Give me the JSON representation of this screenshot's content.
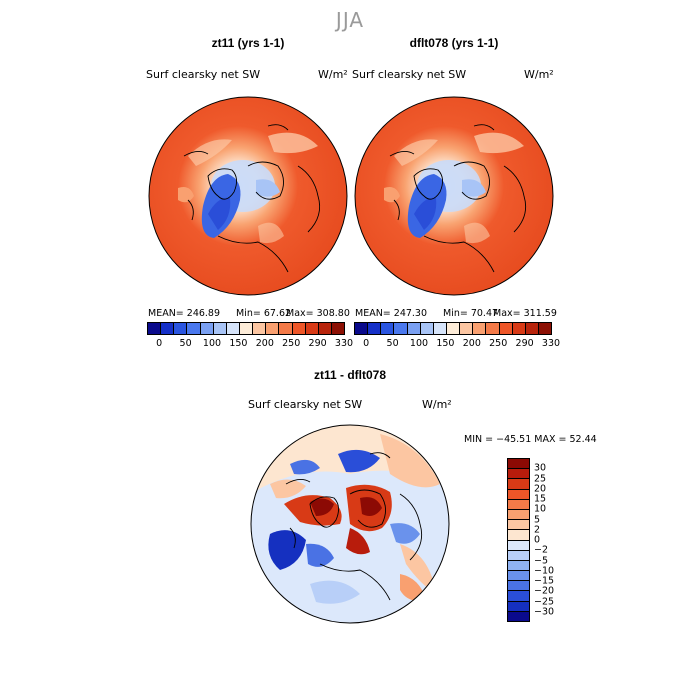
{
  "season": "JJA",
  "panels": [
    {
      "title": "zt11 (yrs 1-1)",
      "variable": "Surf clearsky net SW",
      "units": "W/m²",
      "stats": {
        "mean": "MEAN= 246.89",
        "min": "Min=  67.62",
        "max": "Max= 308.80"
      }
    },
    {
      "title": "dflt078 (yrs 1-1)",
      "variable": "Surf clearsky net SW",
      "units": "W/m²",
      "stats": {
        "mean": "MEAN= 247.30",
        "min": "Min=  70.47",
        "max": "Max= 311.59"
      }
    }
  ],
  "colorbar_top": {
    "labels": [
      "0",
      "50",
      "100",
      "150",
      "200",
      "250",
      "290",
      "330"
    ],
    "colors": [
      "#0a0a8c",
      "#1530c8",
      "#2a55e0",
      "#4a78ee",
      "#7aa0f2",
      "#a8c4f6",
      "#d6e4fa",
      "#fdecd8",
      "#fcc6a2",
      "#f9a070",
      "#f47a48",
      "#ee5628",
      "#d83a16",
      "#b8240c",
      "#8c1004"
    ]
  },
  "diff": {
    "title": "zt11 - dflt078",
    "variable": "Surf clearsky net SW",
    "units": "W/m²",
    "minmax": "MIN = −45.51 MAX =  52.44",
    "colorbar": {
      "labels": [
        "30",
        "25",
        "20",
        "15",
        "10",
        "5",
        "2",
        "0",
        "−2",
        "−5",
        "−10",
        "−15",
        "−20",
        "−25",
        "−30"
      ],
      "colors": [
        "#8c0a04",
        "#b81c0c",
        "#d83a16",
        "#ee5628",
        "#f47a48",
        "#f9a070",
        "#fcc6a2",
        "#fde6d0",
        "#dce8fb",
        "#b8cff8",
        "#8fb2f2",
        "#6a92ec",
        "#4a72e4",
        "#2a4ed8",
        "#1530c0",
        "#0a0a8c"
      ]
    }
  }
}
